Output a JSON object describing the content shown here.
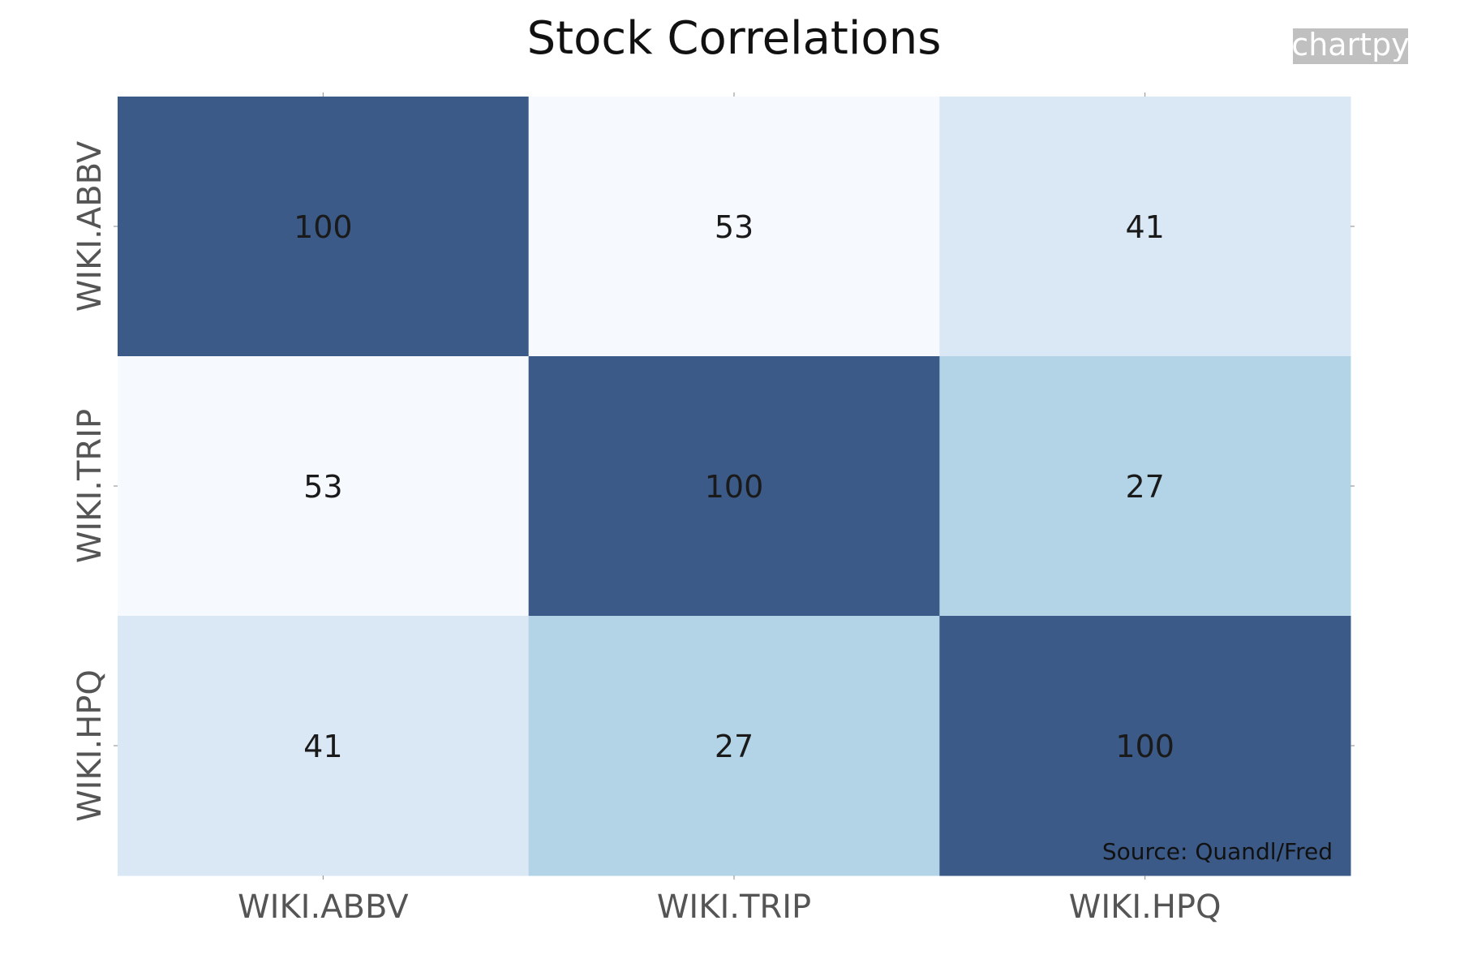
{
  "chart_data": {
    "type": "heatmap",
    "title": "Stock Correlations",
    "x_categories": [
      "WIKI.ABBV",
      "WIKI.TRIP",
      "WIKI.HPQ"
    ],
    "y_categories": [
      "WIKI.ABBV",
      "WIKI.TRIP",
      "WIKI.HPQ"
    ],
    "values": [
      [
        100,
        53,
        41
      ],
      [
        53,
        100,
        27
      ],
      [
        41,
        27,
        100
      ]
    ],
    "cell_labels": [
      [
        "100",
        "53",
        "41"
      ],
      [
        "53",
        "100",
        "27"
      ],
      [
        "41",
        "27",
        "100"
      ]
    ],
    "colors": {
      "100": "#3b5a88",
      "53": "#f6f9fe",
      "41": "#dae7f4",
      "27": "#b3d4e7"
    },
    "grid": false,
    "source": "Source: Quandl/Fred",
    "watermark": "chartpy"
  }
}
